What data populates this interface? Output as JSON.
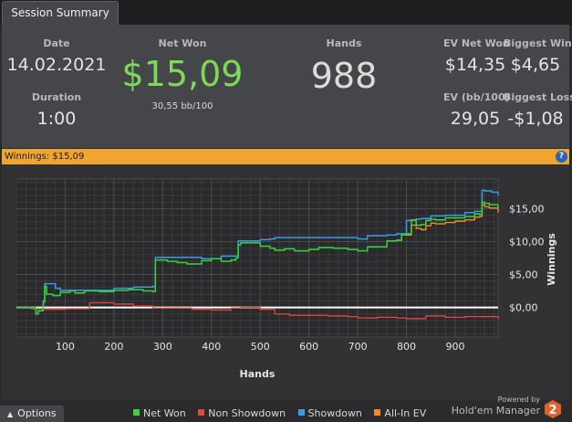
{
  "tab": {
    "label": "Session Summary"
  },
  "summary": {
    "date_label": "Date",
    "date": "14.02.2021",
    "duration_label": "Duration",
    "duration": "1:00",
    "net_won_label": "Net Won",
    "net_won": "$15,09",
    "net_won_bb": "30,55 bb/100",
    "hands_label": "Hands",
    "hands": "988",
    "ev_net_won_label": "EV Net Won",
    "ev_net_won": "$14,35",
    "biggest_win_label": "Biggest Win",
    "biggest_win": "$4,65",
    "ev_bb_label": "EV (bb/100)",
    "ev_bb": "29,05",
    "biggest_loss_label": "Biggest Loss",
    "biggest_loss": "-$1,08"
  },
  "winnings_bar": {
    "text": "Winnings: $15,09",
    "help": "?"
  },
  "colors": {
    "net_won": "#33d63a",
    "non_showdown": "#e8463c",
    "showdown": "#3a9be6",
    "all_in_ev": "#f08a2c",
    "accent": "#f0a530"
  },
  "chart_data": {
    "type": "line",
    "xlabel": "Hands",
    "ylabel": "Winnings",
    "xlim": [
      0,
      988
    ],
    "ylim": [
      -4.5,
      19.5
    ],
    "x_ticks": [
      100,
      200,
      300,
      400,
      500,
      600,
      700,
      800,
      900
    ],
    "y_ticks": [
      {
        "value": 0,
        "label": "$0,00"
      },
      {
        "value": 5,
        "label": "$5,00"
      },
      {
        "value": 10,
        "label": "$10,00"
      },
      {
        "value": 15,
        "label": "$15,00"
      }
    ],
    "grid": true,
    "legend_position": "bottom",
    "series": [
      {
        "name": "Net Won",
        "color": "#33d63a",
        "width": 1.5,
        "x": [
          0,
          40,
          45,
          55,
          58,
          62,
          70,
          75,
          90,
          110,
          120,
          140,
          170,
          200,
          230,
          260,
          280,
          285,
          300,
          310,
          330,
          350,
          380,
          400,
          420,
          440,
          450,
          455,
          460,
          480,
          500,
          520,
          530,
          550,
          570,
          600,
          620,
          650,
          680,
          700,
          720,
          750,
          760,
          780,
          790,
          800,
          810,
          820,
          830,
          840,
          850,
          860,
          880,
          900,
          920,
          940,
          950,
          955,
          960,
          970,
          988
        ],
        "y": [
          0,
          -1.0,
          -0.5,
          0.8,
          3.2,
          2.0,
          2.0,
          1.8,
          2.3,
          2.5,
          2.2,
          2.5,
          2.4,
          2.6,
          2.7,
          2.5,
          2.4,
          7.2,
          7.2,
          7.0,
          6.8,
          6.6,
          7.1,
          7.4,
          7.0,
          7.2,
          7.5,
          9.5,
          9.8,
          9.8,
          9.3,
          9.0,
          8.7,
          8.9,
          8.6,
          8.8,
          9.1,
          9.0,
          8.8,
          8.6,
          9.2,
          9.2,
          10.1,
          10.2,
          11.0,
          11.2,
          13.3,
          12.5,
          12.6,
          13.2,
          13.4,
          13.3,
          13.6,
          13.6,
          13.8,
          14.2,
          14.1,
          16.0,
          15.8,
          15.6,
          15.1
        ]
      },
      {
        "name": "Non Showdown",
        "color": "#e8463c",
        "width": 1.3,
        "x": [
          0,
          30,
          60,
          100,
          150,
          200,
          240,
          280,
          320,
          360,
          400,
          440,
          460,
          500,
          520,
          530,
          560,
          600,
          640,
          680,
          700,
          740,
          780,
          800,
          840,
          880,
          920,
          960,
          988
        ],
        "y": [
          0,
          -0.2,
          -0.3,
          -0.2,
          0.7,
          0.5,
          0.2,
          -0.1,
          -0.1,
          -0.3,
          -0.4,
          -0.1,
          0.0,
          -0.3,
          -0.3,
          -1.0,
          -1.2,
          -1.2,
          -1.3,
          -1.4,
          -1.6,
          -1.5,
          -1.6,
          -1.7,
          -1.3,
          -1.5,
          -1.4,
          -1.4,
          -1.8
        ]
      },
      {
        "name": "Showdown",
        "color": "#3a9be6",
        "width": 1.5,
        "x": [
          0,
          40,
          45,
          55,
          58,
          62,
          70,
          80,
          90,
          120,
          200,
          240,
          280,
          285,
          330,
          380,
          420,
          450,
          455,
          480,
          500,
          520,
          530,
          600,
          650,
          700,
          720,
          740,
          760,
          780,
          800,
          820,
          830,
          850,
          880,
          920,
          940,
          955,
          960,
          975,
          988
        ],
        "y": [
          0,
          -1.0,
          -0.5,
          1.0,
          3.6,
          3.6,
          3.6,
          2.9,
          2.6,
          2.6,
          2.9,
          3.1,
          3.2,
          7.6,
          7.6,
          7.4,
          7.8,
          7.8,
          10.1,
          10.1,
          10.3,
          10.4,
          10.6,
          10.6,
          10.6,
          10.4,
          10.9,
          10.9,
          11.0,
          11.2,
          13.2,
          13.4,
          13.5,
          13.9,
          14.0,
          14.4,
          14.6,
          17.8,
          17.7,
          17.5,
          17.0
        ]
      },
      {
        "name": "All-In EV",
        "color": "#f08a2c",
        "width": 1.4,
        "x": [
          780,
          790,
          800,
          810,
          820,
          830,
          840,
          850,
          860,
          880,
          900,
          920,
          940,
          950,
          955,
          960,
          970,
          988
        ],
        "y": [
          10.2,
          11.0,
          11.0,
          12.5,
          12.0,
          11.8,
          12.4,
          12.8,
          12.7,
          12.9,
          13.1,
          13.3,
          13.7,
          13.8,
          15.6,
          15.3,
          15.1,
          14.4
        ]
      }
    ],
    "zero_line": true
  },
  "footer": {
    "options_label": "Options",
    "powered_by": "Powered by",
    "brand": "Hold'em Manager"
  }
}
